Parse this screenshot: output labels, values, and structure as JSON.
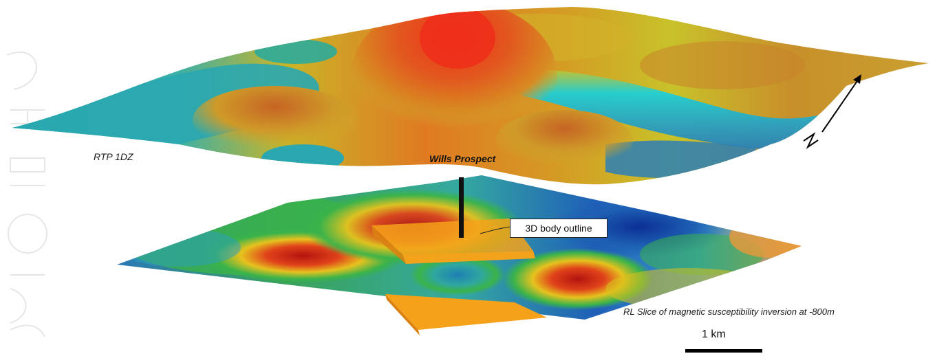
{
  "labels": {
    "surface": "RTP 1DZ",
    "prospect": "Wills Prospect",
    "callout": "3D body outline",
    "slice": "RL Slice of magnetic susceptibility inversion at -800m",
    "scale": "1 km",
    "north": "N"
  },
  "watermark_text": "For personal use only",
  "colors": {
    "peak": "#e8321c",
    "orange": "#e0781e",
    "yellow": "#d8c21e",
    "cyan": "#1fb8c4",
    "teal": "#2aa7b0",
    "blue": "#1d5fb3",
    "green": "#3ab34a",
    "deep_red": "#b3140f",
    "body": "#f5a21a"
  }
}
